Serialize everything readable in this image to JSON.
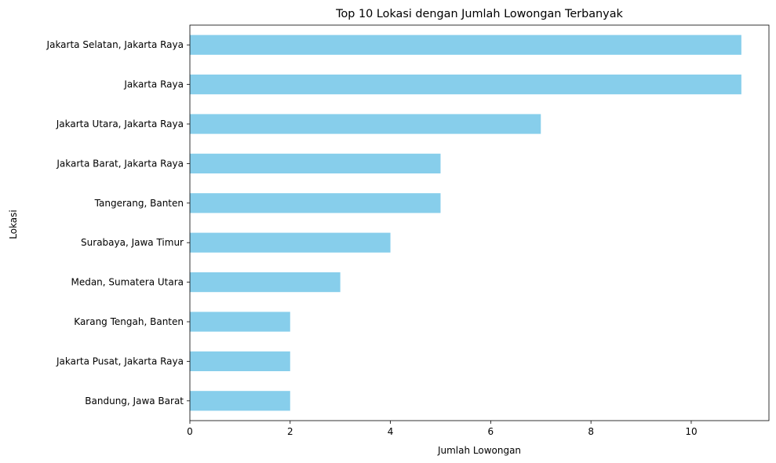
{
  "chart_data": {
    "type": "bar",
    "orientation": "horizontal",
    "title": "Top 10 Lokasi dengan Jumlah Lowongan Terbanyak",
    "xlabel": "Jumlah Lowongan",
    "ylabel": "Lokasi",
    "categories": [
      "Jakarta Selatan, Jakarta Raya",
      "Jakarta Raya",
      "Jakarta Utara, Jakarta Raya",
      "Jakarta Barat, Jakarta Raya",
      "Tangerang, Banten",
      "Surabaya, Jawa Timur",
      "Medan, Sumatera Utara",
      "Karang Tengah, Banten",
      "Jakarta Pusat, Jakarta Raya",
      "Bandung, Jawa Barat"
    ],
    "values": [
      11,
      11,
      7,
      5,
      5,
      4,
      3,
      2,
      2,
      2
    ],
    "xlim": [
      0,
      11.55
    ],
    "xticks": [
      0,
      2,
      4,
      6,
      8,
      10
    ],
    "grid": false,
    "legend": "none",
    "bar_color": "#87ceeb"
  }
}
